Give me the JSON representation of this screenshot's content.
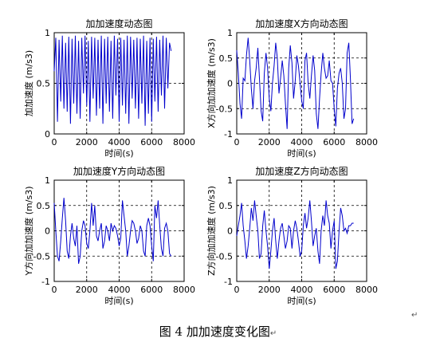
{
  "caption": "图 4  加加速度变化图",
  "caption_mark": "↵",
  "side_mark": "↵",
  "colors": {
    "line": "#0000cc",
    "grid": "#000000",
    "axis": "#000000",
    "background": "#ffffff"
  },
  "chart_data": [
    {
      "type": "line",
      "title": "加加速度动态图",
      "xlabel": "时间(s)",
      "ylabel": "加加速度 (m/s3)",
      "xlim": [
        0,
        8000
      ],
      "ylim": [
        0,
        1
      ],
      "xticks": [
        0,
        2000,
        4000,
        6000,
        8000
      ],
      "yticks": [
        0,
        0.5,
        1
      ],
      "ytick_labels": [
        "0",
        "0.5",
        "1"
      ],
      "grid": true,
      "series": [
        {
          "x": [
            0,
            100,
            200,
            300,
            400,
            500,
            600,
            700,
            800,
            900,
            1000,
            1100,
            1200,
            1300,
            1400,
            1500,
            1600,
            1700,
            1800,
            1900,
            2000,
            2100,
            2200,
            2300,
            2400,
            2500,
            2600,
            2700,
            2800,
            2900,
            3000,
            3100,
            3200,
            3300,
            3400,
            3500,
            3600,
            3700,
            3800,
            3900,
            4000,
            4100,
            4200,
            4300,
            4400,
            4500,
            4600,
            4700,
            4800,
            4900,
            5000,
            5100,
            5200,
            5300,
            5400,
            5500,
            5600,
            5700,
            5800,
            5900,
            6000,
            6100,
            6200,
            6300,
            6400,
            6500,
            6600,
            6700,
            6800,
            6900,
            7000,
            7100,
            7200
          ],
          "values": [
            0.62,
            0.95,
            0.12,
            0.93,
            0.32,
            0.97,
            0.25,
            0.9,
            0.22,
            0.96,
            0.1,
            0.94,
            0.3,
            0.97,
            0.2,
            0.92,
            0.15,
            0.95,
            0.4,
            0.97,
            0.28,
            0.92,
            0.12,
            0.96,
            0.35,
            0.95,
            0.18,
            0.93,
            0.25,
            0.97,
            0.1,
            0.94,
            0.3,
            0.96,
            0.22,
            0.92,
            0.15,
            0.97,
            0.38,
            0.94,
            0.12,
            0.95,
            0.28,
            0.93,
            0.2,
            0.97,
            0.1,
            0.96,
            0.35,
            0.93,
            0.25,
            0.95,
            0.15,
            0.94,
            0.3,
            0.97,
            0.08,
            0.92,
            0.2,
            0.95,
            0.12,
            0.94,
            0.32,
            0.96,
            0.22,
            0.93,
            0.38,
            0.97,
            0.25,
            0.95,
            0.45,
            0.9,
            0.82
          ]
        }
      ]
    },
    {
      "type": "line",
      "title": "加加速度X方向动态图",
      "xlabel": "时间(s)",
      "ylabel": "X方向加加速度 (m/s3)",
      "xlim": [
        0,
        8000
      ],
      "ylim": [
        -1,
        1
      ],
      "xticks": [
        0,
        2000,
        4000,
        6000,
        8000
      ],
      "yticks": [
        -1,
        -0.5,
        0,
        0.5,
        1
      ],
      "ytick_labels": [
        "-1",
        "-0.5",
        "0",
        "0.5",
        "1"
      ],
      "grid": true,
      "series": [
        {
          "x": [
            0,
            100,
            200,
            300,
            400,
            500,
            600,
            700,
            800,
            900,
            1000,
            1100,
            1200,
            1300,
            1400,
            1500,
            1600,
            1700,
            1800,
            1900,
            2000,
            2100,
            2200,
            2300,
            2400,
            2500,
            2600,
            2700,
            2800,
            2900,
            3000,
            3100,
            3200,
            3300,
            3400,
            3500,
            3600,
            3700,
            3800,
            3900,
            4000,
            4100,
            4200,
            4300,
            4400,
            4500,
            4600,
            4700,
            4800,
            4900,
            5000,
            5100,
            5200,
            5300,
            5400,
            5500,
            5600,
            5700,
            5800,
            5900,
            6000,
            6100,
            6200,
            6300,
            6400,
            6500,
            6600,
            6700,
            6800,
            6900,
            7000,
            7100,
            7200
          ],
          "values": [
            0.65,
            0.2,
            -0.4,
            -0.7,
            0.1,
            0.05,
            0.55,
            0.9,
            0.45,
            -0.1,
            -0.5,
            0.05,
            0.3,
            0.7,
            0.1,
            -0.55,
            -0.75,
            0.2,
            0.6,
            0.3,
            -0.3,
            -0.55,
            0.0,
            0.35,
            0.8,
            0.5,
            -0.2,
            0.1,
            0.45,
            0.15,
            -0.4,
            -0.9,
            0.3,
            0.75,
            0.4,
            -0.3,
            0.05,
            0.55,
            0.35,
            0.0,
            -0.35,
            -0.5,
            0.45,
            0.6,
            0.0,
            -0.3,
            0.15,
            0.55,
            0.25,
            -0.6,
            -0.9,
            -0.3,
            0.2,
            0.6,
            0.3,
            0.1,
            0.15,
            0.45,
            0.05,
            0.0,
            -0.5,
            -0.85,
            -0.1,
            0.2,
            0.3,
            0.0,
            -0.7,
            -0.5,
            0.6,
            0.8,
            0.1,
            -0.8,
            -0.7
          ]
        }
      ]
    },
    {
      "type": "line",
      "title": "加加速度Y方向动态图",
      "xlabel": "时间(s)",
      "ylabel": "Y方向加加速度 (m/s3)",
      "xlim": [
        0,
        8000
      ],
      "ylim": [
        -1,
        1
      ],
      "xticks": [
        0,
        2000,
        4000,
        6000,
        8000
      ],
      "yticks": [
        -1,
        -0.5,
        0,
        0.5,
        1
      ],
      "ytick_labels": [
        "-1",
        "-0.5",
        "0",
        "0.5",
        "1"
      ],
      "grid": true,
      "series": [
        {
          "x": [
            0,
            100,
            200,
            300,
            400,
            500,
            600,
            700,
            800,
            900,
            1000,
            1100,
            1200,
            1300,
            1400,
            1500,
            1600,
            1700,
            1800,
            1900,
            2000,
            2100,
            2200,
            2300,
            2400,
            2500,
            2600,
            2700,
            2800,
            2900,
            3000,
            3100,
            3200,
            3300,
            3400,
            3500,
            3600,
            3700,
            3800,
            3900,
            4000,
            4100,
            4200,
            4300,
            4400,
            4500,
            4600,
            4700,
            4800,
            4900,
            5000,
            5100,
            5200,
            5300,
            5400,
            5500,
            5600,
            5700,
            5800,
            5900,
            6000,
            6100,
            6200,
            6300,
            6400,
            6500,
            6600,
            6700,
            6800,
            6900,
            7000,
            7100,
            7200
          ],
          "values": [
            0.55,
            0.0,
            -0.5,
            -0.6,
            -0.2,
            0.25,
            0.65,
            0.2,
            -0.4,
            -0.55,
            -0.1,
            0.15,
            -0.15,
            -0.3,
            0.1,
            -0.65,
            -0.5,
            0.0,
            0.2,
            0.1,
            -0.25,
            -0.35,
            0.0,
            0.55,
            0.1,
            0.5,
            -0.1,
            -0.2,
            0.0,
            0.15,
            -0.35,
            -0.2,
            0.1,
            0.0,
            -0.2,
            0.15,
            0.0,
            0.1,
            0.05,
            -0.1,
            -0.3,
            -0.15,
            0.6,
            0.3,
            0.0,
            -0.5,
            -0.3,
            0.0,
            0.2,
            0.15,
            0.0,
            -0.25,
            -0.15,
            0.1,
            0.0,
            -0.4,
            -0.5,
            0.1,
            0.25,
            0.1,
            -0.3,
            -0.6,
            0.5,
            0.25,
            0.6,
            0.1,
            -0.35,
            -0.5,
            0.05,
            0.15,
            0.0,
            -0.45,
            -0.5
          ]
        }
      ]
    },
    {
      "type": "line",
      "title": "加加速度Z方向动态图",
      "xlabel": "时间(s)",
      "ylabel": "Z方向加加速度 (m/s3)",
      "xlim": [
        0,
        8000
      ],
      "ylim": [
        -1,
        1
      ],
      "xticks": [
        0,
        2000,
        4000,
        6000,
        8000
      ],
      "yticks": [
        -1,
        -0.5,
        0,
        0.5,
        1
      ],
      "ytick_labels": [
        "-1",
        "-0.5",
        "0",
        "0.5",
        "1"
      ],
      "grid": true,
      "series": [
        {
          "x": [
            0,
            100,
            200,
            300,
            400,
            500,
            600,
            700,
            800,
            900,
            1000,
            1100,
            1200,
            1300,
            1400,
            1500,
            1600,
            1700,
            1800,
            1900,
            2000,
            2100,
            2200,
            2300,
            2400,
            2500,
            2600,
            2700,
            2800,
            2900,
            3000,
            3100,
            3200,
            3300,
            3400,
            3500,
            3600,
            3700,
            3800,
            3900,
            4000,
            4100,
            4200,
            4300,
            4400,
            4500,
            4600,
            4700,
            4800,
            4900,
            5000,
            5100,
            5200,
            5300,
            5400,
            5500,
            5600,
            5700,
            5800,
            5900,
            6000,
            6100,
            6200,
            6300,
            6400,
            6500,
            6600,
            6700,
            6800,
            6900,
            7000,
            7100,
            7200
          ],
          "values": [
            -0.1,
            0.1,
            0.3,
            0.55,
            0.1,
            -0.2,
            -0.55,
            -0.3,
            0.05,
            0.45,
            0.2,
            0.6,
            0.3,
            0.0,
            -0.55,
            -0.45,
            0.1,
            0.4,
            0.0,
            -0.3,
            -0.75,
            -0.4,
            0.0,
            0.25,
            -0.2,
            -0.55,
            -0.2,
            0.05,
            0.15,
            -0.1,
            -0.35,
            -0.2,
            0.1,
            0.05,
            -0.35,
            0.0,
            0.2,
            0.05,
            -0.2,
            -0.5,
            -0.4,
            0.1,
            0.35,
            0.05,
            0.25,
            0.6,
            0.2,
            -0.3,
            -0.1,
            0.05,
            -0.4,
            -0.65,
            0.0,
            0.3,
            0.1,
            0.6,
            0.3,
            0.15,
            -0.35,
            0.0,
            0.2,
            -0.75,
            -0.6,
            0.0,
            0.45,
            0.3,
            0.0,
            0.05,
            -0.05,
            0.1,
            0.1,
            0.15,
            0.15
          ]
        }
      ]
    }
  ]
}
